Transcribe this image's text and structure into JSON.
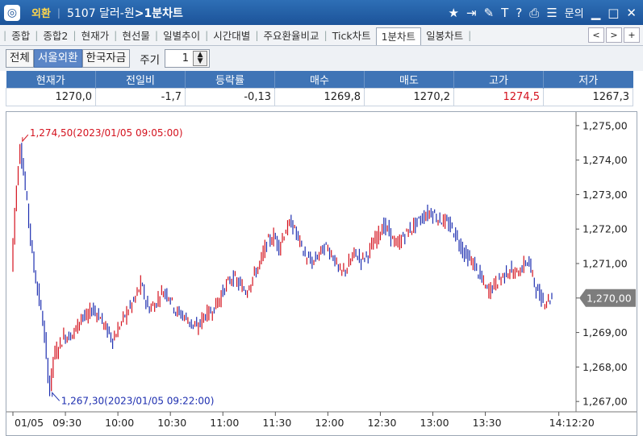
{
  "titlebar": {
    "badge": "외환",
    "title_prefix": "5107 달러-원",
    "title_suffix": ">1분차트",
    "icons": [
      "star-icon",
      "export-icon",
      "pen-icon",
      "text-icon",
      "help-icon",
      "print-icon",
      "list-icon"
    ],
    "inquiry_label": "문의",
    "controls": [
      "minimize-icon",
      "maximize-icon",
      "close-icon"
    ]
  },
  "tabs": [
    "종합",
    "종합2",
    "현재가",
    "현선물",
    "일별추이",
    "시간대별",
    "주요환율비교",
    "Tick차트",
    "1분차트",
    "일봉차트"
  ],
  "active_tab": "1분차트",
  "tab_nav": [
    "<",
    ">",
    "+"
  ],
  "filters": {
    "all": "전체",
    "seoul": "서울외환",
    "korea": "한국자금"
  },
  "period": {
    "label": "주기",
    "value": "1"
  },
  "quote": {
    "headers": [
      "현재가",
      "전일비",
      "등락률",
      "매수",
      "매도",
      "고가",
      "저가"
    ],
    "values": [
      "1270,0",
      "-1,7",
      "-0,13",
      "1269,8",
      "1270,2",
      "1274,5",
      "1267,3"
    ]
  },
  "colors": {
    "up": "#d4121e",
    "down": "#1e2fb0",
    "titlebar": "#1c5399",
    "header": "#3f74b6"
  },
  "chart_data": {
    "type": "candlestick",
    "title": "",
    "ylim": [
      1266.7,
      1275.3
    ],
    "y_ticks": [
      "1,275,00",
      "1,274,00",
      "1,273,00",
      "1,272,00",
      "1,271,00",
      "1,270,00",
      "1,269,00",
      "1,268,00",
      "1,267,00"
    ],
    "y_tick_values": [
      1275,
      1274,
      1273,
      1272,
      1271,
      1270,
      1269,
      1268,
      1267
    ],
    "x_ticks": [
      "01/05",
      "09:30",
      "10:00",
      "10:30",
      "11:00",
      "11:30",
      "12:00",
      "12:30",
      "13:00",
      "13:30",
      "14:12:20"
    ],
    "x_tick_minutes": [
      0,
      30,
      60,
      90,
      120,
      150,
      180,
      210,
      240,
      270,
      312
    ],
    "current_price": 1270.0,
    "current_label": "1,270,00",
    "high_annotation": "1,274,50(2023/01/05 09:05:00)",
    "high": {
      "minute": 5,
      "price": 1274.5
    },
    "low_annotation": "1,267,30(2023/01/05 09:22:00)",
    "low": {
      "minute": 22,
      "price": 1267.3
    },
    "price_path": [
      [
        0,
        1270.8
      ],
      [
        2,
        1272.6
      ],
      [
        4,
        1273.9
      ],
      [
        5,
        1274.5
      ],
      [
        7,
        1273.6
      ],
      [
        9,
        1272.7
      ],
      [
        12,
        1271.2
      ],
      [
        15,
        1270.2
      ],
      [
        18,
        1269.3
      ],
      [
        20,
        1268.2
      ],
      [
        22,
        1267.3
      ],
      [
        24,
        1268.3
      ],
      [
        27,
        1268.6
      ],
      [
        30,
        1268.9
      ],
      [
        33,
        1268.9
      ],
      [
        36,
        1269.0
      ],
      [
        40,
        1269.5
      ],
      [
        43,
        1269.4
      ],
      [
        46,
        1269.7
      ],
      [
        50,
        1269.5
      ],
      [
        54,
        1269.1
      ],
      [
        58,
        1268.8
      ],
      [
        62,
        1269.2
      ],
      [
        66,
        1269.6
      ],
      [
        70,
        1269.9
      ],
      [
        74,
        1270.4
      ],
      [
        78,
        1269.7
      ],
      [
        82,
        1269.8
      ],
      [
        86,
        1270.2
      ],
      [
        90,
        1270.1
      ],
      [
        94,
        1269.6
      ],
      [
        98,
        1269.5
      ],
      [
        102,
        1269.3
      ],
      [
        106,
        1269.1
      ],
      [
        110,
        1269.5
      ],
      [
        114,
        1269.6
      ],
      [
        118,
        1269.9
      ],
      [
        122,
        1270.3
      ],
      [
        126,
        1270.6
      ],
      [
        130,
        1270.4
      ],
      [
        134,
        1270.2
      ],
      [
        138,
        1270.6
      ],
      [
        142,
        1271.0
      ],
      [
        146,
        1271.6
      ],
      [
        150,
        1271.8
      ],
      [
        153,
        1271.5
      ],
      [
        156,
        1271.9
      ],
      [
        160,
        1272.2
      ],
      [
        164,
        1271.7
      ],
      [
        168,
        1271.2
      ],
      [
        172,
        1271.0
      ],
      [
        176,
        1271.3
      ],
      [
        180,
        1271.5
      ],
      [
        184,
        1271.2
      ],
      [
        188,
        1270.7
      ],
      [
        192,
        1270.9
      ],
      [
        196,
        1271.3
      ],
      [
        200,
        1271.1
      ],
      [
        204,
        1271.3
      ],
      [
        208,
        1271.7
      ],
      [
        212,
        1272.1
      ],
      [
        216,
        1271.9
      ],
      [
        220,
        1271.5
      ],
      [
        224,
        1271.8
      ],
      [
        228,
        1272.0
      ],
      [
        232,
        1272.2
      ],
      [
        236,
        1272.4
      ],
      [
        240,
        1272.5
      ],
      [
        244,
        1272.3
      ],
      [
        248,
        1272.2
      ],
      [
        252,
        1272.0
      ],
      [
        256,
        1271.6
      ],
      [
        260,
        1271.2
      ],
      [
        264,
        1271.0
      ],
      [
        268,
        1270.6
      ],
      [
        272,
        1270.2
      ],
      [
        276,
        1270.4
      ],
      [
        280,
        1270.6
      ],
      [
        284,
        1270.8
      ],
      [
        288,
        1270.7
      ],
      [
        292,
        1270.9
      ],
      [
        295,
        1271.1
      ],
      [
        298,
        1270.6
      ],
      [
        301,
        1270.1
      ],
      [
        304,
        1269.9
      ],
      [
        308,
        1270.0
      ]
    ]
  }
}
